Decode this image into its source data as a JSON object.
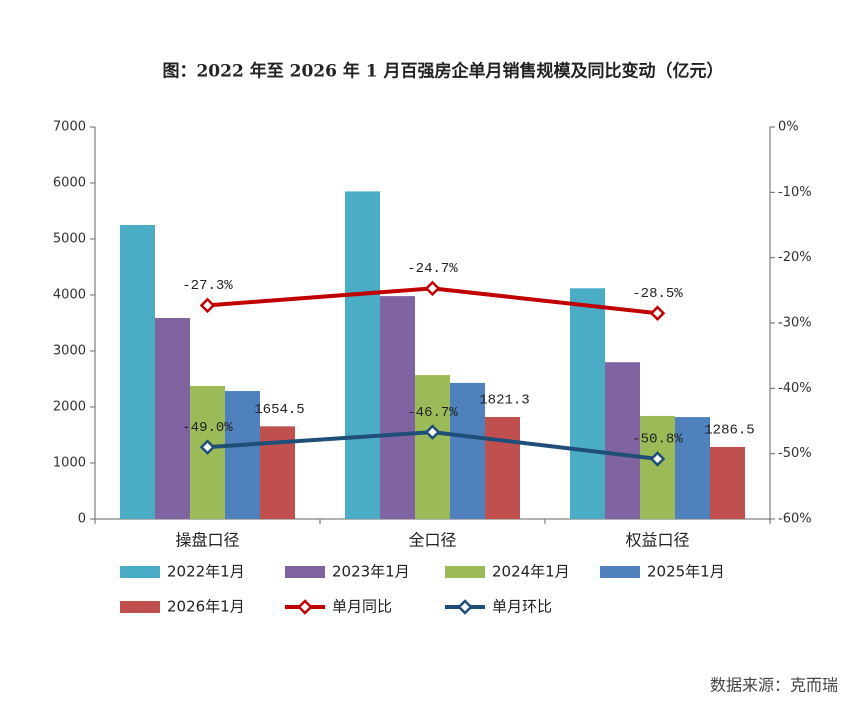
{
  "chart_data": {
    "type": "bar",
    "title": "图：2022 年至 2026 年 1 月百强房企单月销售规模及同比变动（亿元）",
    "source": "数据来源：克而瑞",
    "categories": [
      "操盘口径",
      "全口径",
      "权益口径"
    ],
    "series": [
      {
        "name": "2022年1月",
        "color": "#4bacc6",
        "values": [
          5250,
          5850,
          4120
        ]
      },
      {
        "name": "2023年1月",
        "color": "#8064a2",
        "values": [
          3590,
          3980,
          2800
        ]
      },
      {
        "name": "2024年1月",
        "color": "#9bbb59",
        "values": [
          2375,
          2570,
          1840
        ]
      },
      {
        "name": "2025年1月",
        "color": "#4f81bd",
        "values": [
          2285,
          2430,
          1820
        ]
      },
      {
        "name": "2026年1月",
        "color": "#c0504d",
        "values": [
          1654.5,
          1821.3,
          1286.5
        ],
        "show_values": true
      },
      {
        "name": "单月同比",
        "type": "line",
        "axis": "y2",
        "color": "#c00000",
        "values": [
          -27.3,
          -24.7,
          -28.5
        ],
        "value_labels": [
          "-27.3%",
          "-24.7%",
          "-28.5%"
        ]
      },
      {
        "name": "单月环比",
        "type": "line",
        "axis": "y2",
        "color": "#1f4e79",
        "values": [
          -49.0,
          -46.7,
          -50.8
        ],
        "value_labels": [
          "-49.0%",
          "-46.7%",
          "-50.8%"
        ]
      }
    ],
    "ylim": [
      0,
      7000
    ],
    "yticks": [
      0,
      1000,
      2000,
      3000,
      4000,
      5000,
      6000,
      7000
    ],
    "y2lim": [
      -60,
      0
    ],
    "y2ticks": [
      {
        "value": 0,
        "label": "0%"
      },
      {
        "value": -10,
        "label": "-10%"
      },
      {
        "value": -20,
        "label": "-20%"
      },
      {
        "value": -30,
        "label": "-30%"
      },
      {
        "value": -40,
        "label": "-40%"
      },
      {
        "value": -50,
        "label": "-50%"
      },
      {
        "value": -60,
        "label": "-60%"
      }
    ],
    "grid": false
  }
}
